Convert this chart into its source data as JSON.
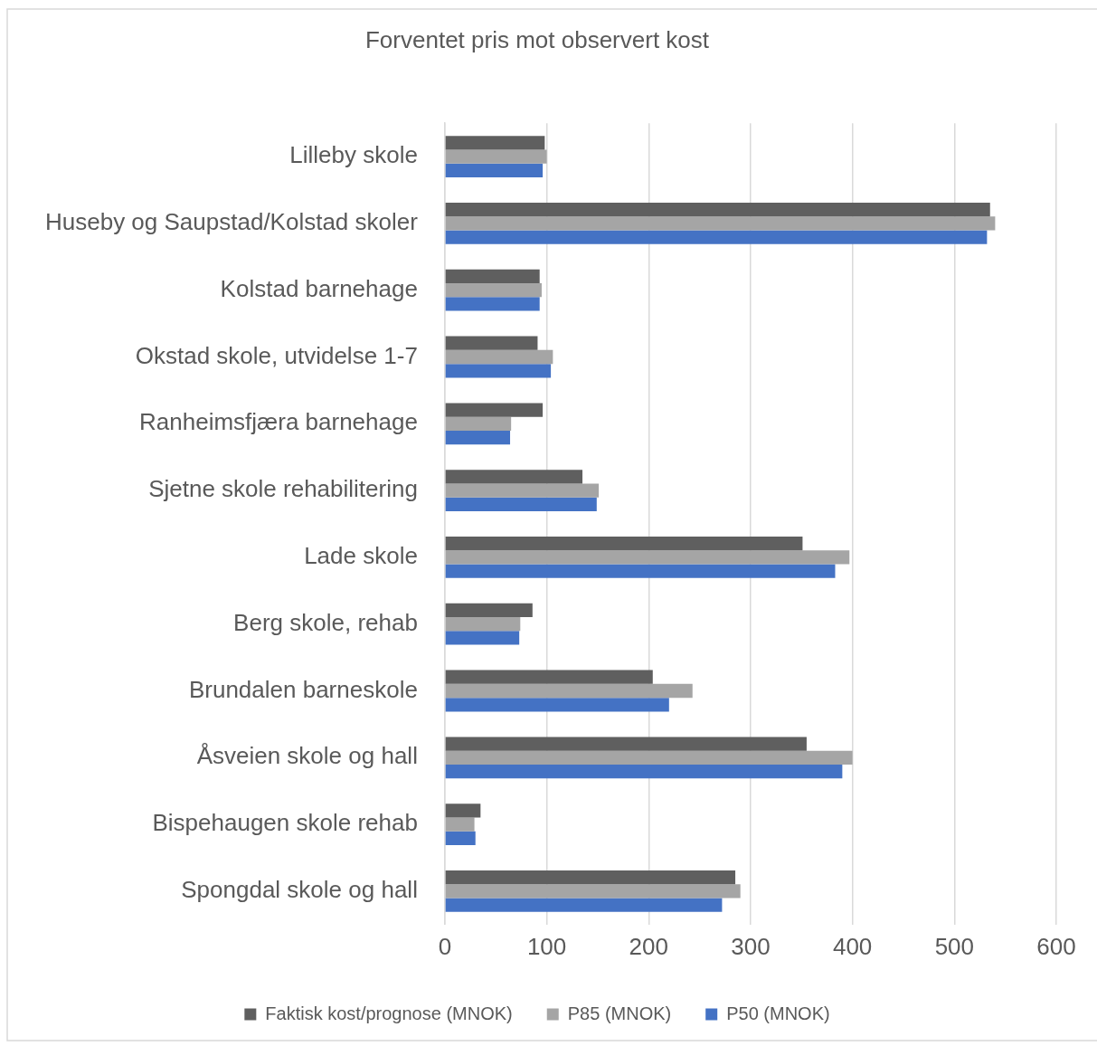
{
  "chart_data": {
    "type": "bar",
    "orientation": "horizontal",
    "title": "Forventet pris mot observert kost",
    "categories": [
      "Lilleby skole",
      "Huseby og Saupstad/Kolstad skoler",
      "Kolstad barnehage",
      "Okstad skole, utvidelse 1-7",
      "Ranheimsfjæra barnehage",
      "Sjetne skole rehabilitering",
      "Lade skole",
      "Berg skole, rehab",
      "Brundalen barneskole",
      "Åsveien skole og hall",
      "Bispehaugen skole rehab",
      "Spongdal skole og hall"
    ],
    "series": [
      {
        "name": "Faktisk kost/prognose (MNOK)",
        "color": "#5f5f5f",
        "values": [
          98,
          535,
          93,
          91,
          96,
          135,
          351,
          86,
          204,
          355,
          35,
          285
        ]
      },
      {
        "name": "P85 (MNOK)",
        "color": "#a5a5a5",
        "values": [
          100,
          540,
          95,
          106,
          65,
          151,
          397,
          74,
          243,
          400,
          29,
          290
        ]
      },
      {
        "name": "P50 (MNOK)",
        "color": "#4472c4",
        "values": [
          96,
          532,
          93,
          104,
          64,
          149,
          383,
          73,
          220,
          390,
          30,
          272
        ]
      }
    ],
    "xlim": [
      0,
      600
    ],
    "xticks": [
      0,
      100,
      200,
      300,
      400,
      500,
      600
    ],
    "grid": "x",
    "legend": "bottom"
  }
}
